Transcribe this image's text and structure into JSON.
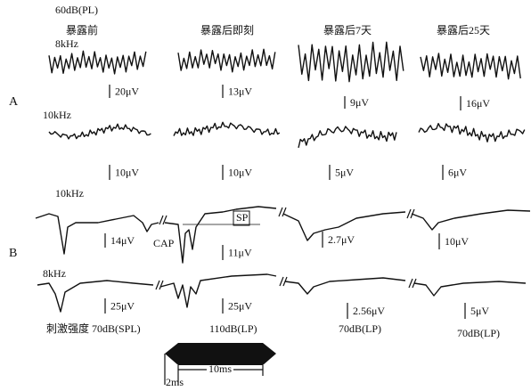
{
  "header": {
    "level": "60dB(PL)",
    "columns": [
      "暴露前",
      "暴露后即刻",
      "暴露后7天",
      "暴露后25天"
    ]
  },
  "panel_a": {
    "label": "A",
    "rows": [
      {
        "frequency": "8kHz",
        "scales": [
          "20μV",
          "13μV",
          "9μV",
          "16μV"
        ]
      },
      {
        "frequency": "10kHz",
        "scales": [
          "10μV",
          "10μV",
          "5μV",
          "6μV"
        ]
      }
    ]
  },
  "panel_b": {
    "label": "B",
    "cap_label": "CAP",
    "sp_label": "SP",
    "rows": [
      {
        "frequency": "10kHz",
        "scales": [
          "14μV",
          "11μV",
          "2.7μV",
          "10μV"
        ]
      },
      {
        "frequency": "8kHz",
        "scales": [
          "25μV",
          "25μV",
          "2.56μV",
          "5μV"
        ]
      }
    ],
    "intensities": [
      "刺激强度 70dB(SPL)",
      "110dB(LP)",
      "70dB(LP)",
      "70dB(LP)"
    ]
  },
  "stimulus": {
    "rise": "2ms",
    "duration": "10ms"
  }
}
